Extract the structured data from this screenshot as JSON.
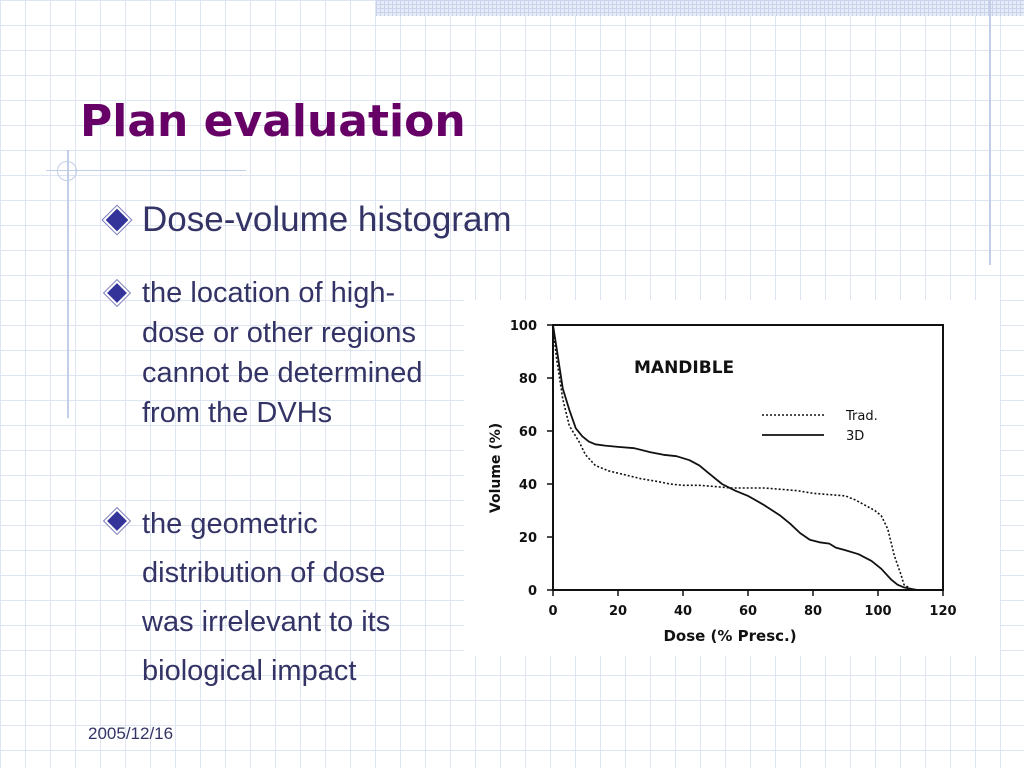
{
  "slide": {
    "title": "Plan evaluation",
    "bullet": "Dose-volume histogram",
    "sub_bullets": [
      "the location of high-dose or other regions cannot be determined from the DVHs",
      "the geometric distribution of dose was irrelevant to its biological impact"
    ],
    "footer_date": "2005/12/16"
  },
  "colors": {
    "title": "#660066",
    "text": "#333366",
    "bullet": "#333399",
    "grid": "#dde4f2"
  },
  "chart_data": {
    "type": "line",
    "title": "MANDIBLE",
    "xlabel": "Dose (% Presc.)",
    "ylabel": "Volume (%)",
    "xlim": [
      0,
      120
    ],
    "ylim": [
      0,
      100
    ],
    "xticks": [
      0,
      20,
      40,
      60,
      80,
      100,
      120
    ],
    "yticks": [
      0,
      20,
      40,
      60,
      80,
      100
    ],
    "grid": false,
    "legend_position": "top-right",
    "series": [
      {
        "name": "Trad.",
        "style": "dotted",
        "x": [
          0,
          1,
          3,
          5,
          8,
          10,
          13,
          17,
          22,
          27,
          32,
          36,
          40,
          45,
          50,
          55,
          60,
          65,
          70,
          75,
          80,
          85,
          90,
          93,
          96,
          99,
          101,
          103,
          105,
          107,
          108,
          110,
          112,
          115,
          120
        ],
        "y": [
          100,
          88,
          72,
          62,
          56,
          51,
          47,
          45,
          43.5,
          42,
          41,
          40,
          39.5,
          39.5,
          39,
          38.5,
          38.5,
          38.5,
          38,
          37.5,
          36.5,
          36,
          35.5,
          34,
          32,
          30,
          28,
          23,
          13,
          6,
          2,
          0.5,
          0,
          0,
          0
        ]
      },
      {
        "name": "3D",
        "style": "solid",
        "x": [
          0,
          1,
          3,
          5,
          7,
          9,
          11,
          13,
          16,
          20,
          25,
          30,
          34,
          38,
          42,
          45,
          48,
          52,
          56,
          60,
          65,
          70,
          73,
          76,
          79,
          82,
          85,
          87,
          90,
          94,
          98,
          101,
          104,
          106,
          108,
          110,
          112,
          115,
          120
        ],
        "y": [
          100,
          92,
          76,
          68,
          61,
          58,
          56,
          55,
          54.5,
          54,
          53.5,
          52,
          51,
          50.5,
          49,
          47,
          44,
          40,
          37.5,
          35.5,
          32,
          28,
          25,
          21.5,
          19,
          18,
          17.5,
          16,
          15,
          13.5,
          11,
          8,
          4,
          2,
          1,
          0.5,
          0,
          0,
          0
        ]
      }
    ]
  }
}
